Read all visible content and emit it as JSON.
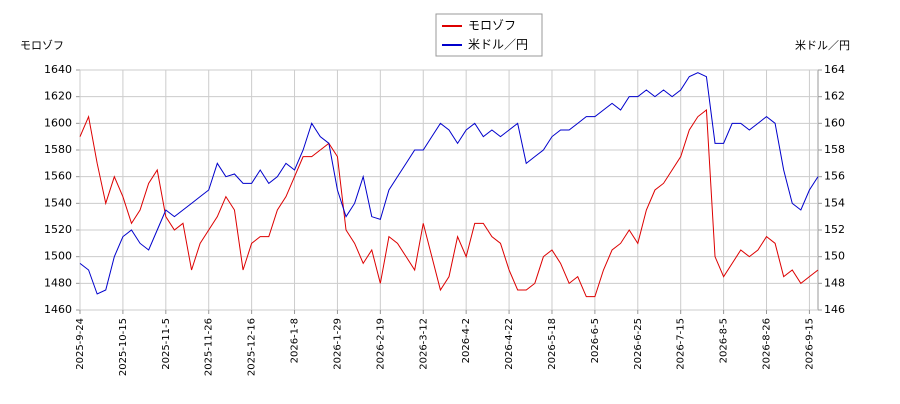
{
  "chart_data": {
    "type": "line",
    "ylabel": "モロゾフ",
    "y2label": "米ドル／円",
    "categories": [
      "2025-9-24",
      null,
      null,
      null,
      null,
      "2025-10-15",
      null,
      null,
      null,
      null,
      "2025-11-5",
      null,
      null,
      null,
      null,
      "2025-11-26",
      null,
      null,
      null,
      null,
      "2025-12-16",
      null,
      null,
      null,
      null,
      "2026-1-8",
      null,
      null,
      null,
      null,
      "2026-1-29",
      null,
      null,
      null,
      null,
      "2026-2-19",
      null,
      null,
      null,
      null,
      "2026-3-12",
      null,
      null,
      null,
      null,
      "2026-4-2",
      null,
      null,
      null,
      null,
      "2026-4-22",
      null,
      null,
      null,
      null,
      "2026-5-18",
      null,
      null,
      null,
      null,
      "2026-6-5",
      null,
      null,
      null,
      null,
      "2026-6-25",
      null,
      null,
      null,
      null,
      "2026-7-15",
      null,
      null,
      null,
      null,
      "2026-8-5",
      null,
      null,
      null,
      null,
      "2026-8-26",
      null,
      null,
      null,
      null,
      "2026-9-15",
      null
    ],
    "series": [
      {
        "name": "モロゾフ",
        "color": "#dd0000",
        "values": [
          1590,
          1605,
          1570,
          1540,
          1560,
          1545,
          1525,
          1535,
          1555,
          1565,
          1530,
          1520,
          1525,
          1490,
          1510,
          1520,
          1530,
          1545,
          1535,
          1490,
          1510,
          1515,
          1515,
          1535,
          1545,
          1560,
          1575,
          1575,
          1580,
          1585,
          1575,
          1520,
          1510,
          1495,
          1505,
          1480,
          1515,
          1510,
          1500,
          1490,
          1525,
          1500,
          1475,
          1485,
          1515,
          1500,
          1525,
          1525,
          1515,
          1510,
          1490,
          1475,
          1475,
          1480,
          1500,
          1505,
          1495,
          1480,
          1485,
          1470,
          1470,
          1490,
          1505,
          1510,
          1520,
          1510,
          1535,
          1550,
          1555,
          1565,
          1575,
          1595,
          1605,
          1610,
          1500,
          1485,
          1495,
          1505,
          1500,
          1505,
          1515,
          1510,
          1485,
          1490,
          1480,
          1485,
          1490
        ]
      },
      {
        "name": "米ドル／円",
        "color": "#0000cc",
        "axis": "y2",
        "values": [
          149.5,
          149,
          147.2,
          147.5,
          150,
          151.5,
          152,
          151,
          150.5,
          152,
          153.5,
          153,
          153.5,
          154,
          154.5,
          155,
          157,
          156,
          156.2,
          155.5,
          155.5,
          156.5,
          155.5,
          156,
          157,
          156.5,
          158,
          160,
          159,
          158.5,
          155,
          153,
          154,
          156,
          153,
          152.8,
          155,
          156,
          157,
          158,
          158,
          159,
          160,
          159.5,
          158.5,
          159.5,
          160,
          159,
          159.5,
          159,
          159.5,
          160,
          157,
          157.5,
          158,
          159,
          159.5,
          159.5,
          160,
          160.5,
          160.5,
          161,
          161.5,
          161,
          162,
          162,
          162.5,
          162,
          162.5,
          162,
          162.5,
          163.5,
          163.8,
          163.5,
          158.5,
          158.5,
          160,
          160,
          159.5,
          160,
          160.5,
          160,
          156.5,
          154,
          153.5,
          155,
          156
        ]
      }
    ],
    "ylim": [
      1460,
      1640
    ],
    "yticks": [
      1460,
      1480,
      1500,
      1520,
      1540,
      1560,
      1580,
      1600,
      1620,
      1640
    ],
    "y2lim": [
      146,
      164
    ],
    "y2ticks": [
      146,
      148,
      150,
      152,
      154,
      156,
      158,
      160,
      162,
      164
    ],
    "grid": true
  }
}
